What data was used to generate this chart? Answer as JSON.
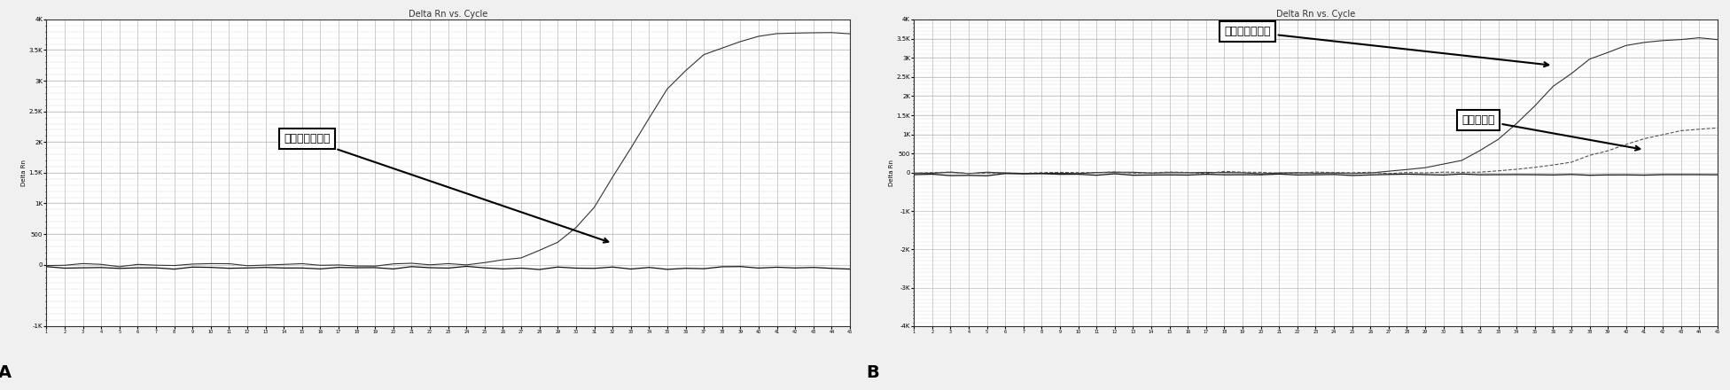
{
  "title_A": "Delta Rn vs. Cycle",
  "title_B": "Delta Rn vs. Cycle",
  "x_min": 1,
  "x_max": 45,
  "y_min_A": -1000,
  "y_max_A": 4000,
  "y_min_B": -4000,
  "y_max_B": 4000,
  "yticks_A": [
    -1000,
    0,
    500,
    1000,
    1500,
    2000,
    2500,
    3000,
    3500,
    4000
  ],
  "ytick_labels_A": [
    "-1K",
    "0",
    "500",
    "1K",
    "1.5K",
    "2K",
    "2.5K",
    "3K",
    "3.5K",
    "4K"
  ],
  "yticks_B": [
    -4000,
    -3000,
    -2000,
    -1000,
    0,
    500,
    1000,
    1500,
    2000,
    2500,
    3000,
    3500,
    4000
  ],
  "ytick_labels_B": [
    "-4K",
    "-3K",
    "-2K",
    "-1K",
    "0",
    "500",
    "1K",
    "1.5K",
    "2K",
    "2.5K",
    "3K",
    "3.5K",
    "4K"
  ],
  "label_sensitive_A": "敏感株阳性对照",
  "label_sensitive_B": "敏感株阳性对照",
  "label_clinical_B": "临床敏感株",
  "panel_A": "A",
  "panel_B": "B",
  "bg_color": "#ffffff",
  "plot_bg_color": "#ffffff",
  "line_color_dark": "#222222",
  "grid_color": "#bbbbbb",
  "ylabel_A": "Delta Rn",
  "ylabel_B": "Delta Rn"
}
